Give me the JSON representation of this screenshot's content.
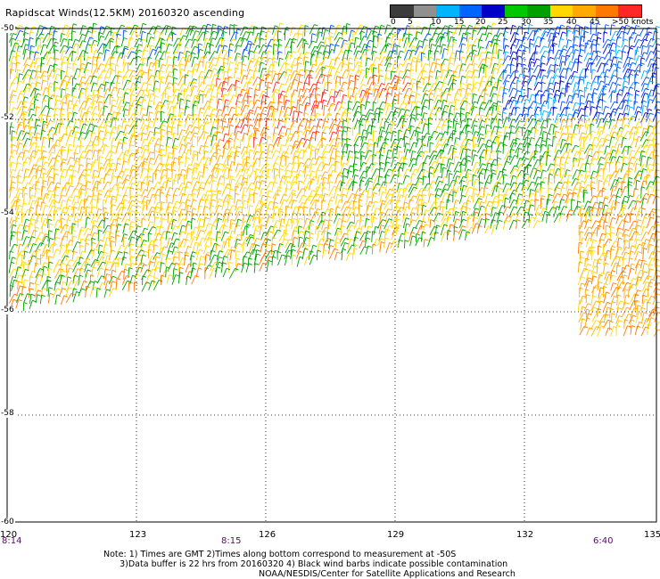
{
  "title": "Rapidscat Winds(12.5KM) 20160320 ascending",
  "legend": {
    "colors": [
      "#3c3c3c",
      "#909090",
      "#00b4ff",
      "#0064ff",
      "#0000c8",
      "#00c800",
      "#00a000",
      "#ffd800",
      "#ffaa00",
      "#ff7800",
      "#ff2828",
      "#d20000",
      "#7a4a28",
      "#c896ff",
      "#9632c8",
      "#5a0a8c"
    ],
    "labels": [
      "0",
      "5",
      "10",
      "15",
      "20",
      "25",
      "30",
      "35",
      "40",
      "45",
      ">50 knots"
    ]
  },
  "axes": {
    "lat_labels": [
      "-50",
      "-52",
      "-54",
      "-56",
      "-58",
      "-60"
    ],
    "lon_labels": [
      "120",
      "123",
      "126",
      "129",
      "132",
      "135"
    ],
    "time_labels": [
      "8:14",
      "8:15",
      "6:40"
    ]
  },
  "note": "Note: 1) Times are GMT 2)Times along bottom correspond to measurement at -50S\n      3)Data buffer is 22 hrs from 20160320 4) Black wind barbs indicate possible contamination",
  "credit": "NOAA/NESDIS/Center for Satellite Applications and Research"
}
